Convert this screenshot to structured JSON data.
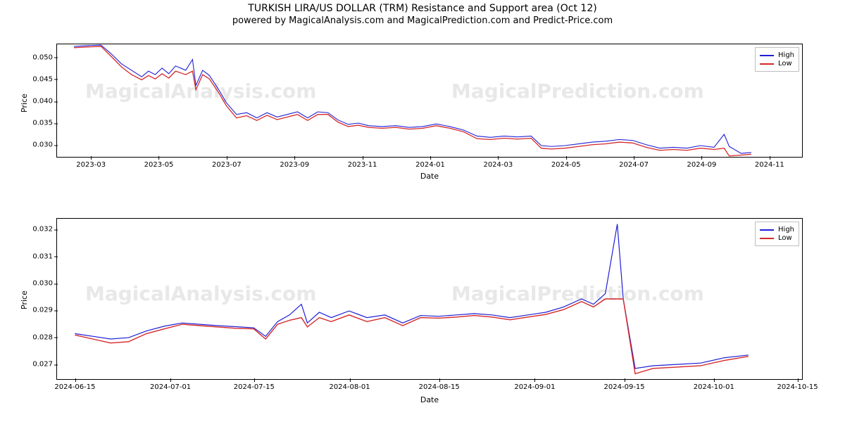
{
  "titles": {
    "main": "TURKISH LIRA/US DOLLAR (TRM) Resistance and Support area (Oct 12)",
    "sub": "powered by MagicalAnalysis.com and MagicalPrediction.com and Predict-Price.com"
  },
  "watermarks": [
    "MagicalAnalysis.com",
    "MagicalPrediction.com"
  ],
  "legend": {
    "high": {
      "label": "High",
      "color": "#1f1fd6"
    },
    "low": {
      "label": "Low",
      "color": "#d62728"
    }
  },
  "axis_labels": {
    "x": "Date",
    "y": "Price"
  },
  "panel1": {
    "ylim": [
      0.027,
      0.053
    ],
    "yticks": [
      0.03,
      0.035,
      0.04,
      0.045,
      0.05
    ],
    "ytick_labels": [
      "0.030",
      "0.035",
      "0.040",
      "0.045",
      "0.050"
    ],
    "xlim": [
      0,
      22
    ],
    "xticks": [
      1,
      3,
      5,
      7,
      9,
      11,
      13,
      15,
      17,
      19,
      21
    ],
    "xtick_labels": [
      "2023-03",
      "2023-05",
      "2023-07",
      "2023-09",
      "2023-11",
      "2024-01",
      "2024-03",
      "2024-05",
      "2024-07",
      "2024-09",
      "2024-11"
    ],
    "series": {
      "high": {
        "color": "#1f1fd6",
        "width": 1.1,
        "points": [
          [
            0.5,
            0.0525
          ],
          [
            0.9,
            0.0527
          ],
          [
            1.3,
            0.0528
          ],
          [
            1.6,
            0.0508
          ],
          [
            1.9,
            0.0485
          ],
          [
            2.2,
            0.047
          ],
          [
            2.5,
            0.0455
          ],
          [
            2.7,
            0.0468
          ],
          [
            2.9,
            0.046
          ],
          [
            3.1,
            0.0475
          ],
          [
            3.3,
            0.0462
          ],
          [
            3.5,
            0.048
          ],
          [
            3.8,
            0.047
          ],
          [
            4.0,
            0.0495
          ],
          [
            4.1,
            0.0435
          ],
          [
            4.3,
            0.047
          ],
          [
            4.5,
            0.0458
          ],
          [
            4.8,
            0.0422
          ],
          [
            5.0,
            0.0395
          ],
          [
            5.3,
            0.0368
          ],
          [
            5.6,
            0.0372
          ],
          [
            5.9,
            0.036
          ],
          [
            6.2,
            0.0372
          ],
          [
            6.5,
            0.0362
          ],
          [
            6.8,
            0.0368
          ],
          [
            7.1,
            0.0374
          ],
          [
            7.4,
            0.036
          ],
          [
            7.7,
            0.0374
          ],
          [
            8.0,
            0.0372
          ],
          [
            8.3,
            0.0355
          ],
          [
            8.6,
            0.0345
          ],
          [
            8.9,
            0.0348
          ],
          [
            9.2,
            0.0342
          ],
          [
            9.6,
            0.034
          ],
          [
            10.0,
            0.0342
          ],
          [
            10.4,
            0.0338
          ],
          [
            10.8,
            0.034
          ],
          [
            11.2,
            0.0346
          ],
          [
            11.6,
            0.034
          ],
          [
            12.0,
            0.0332
          ],
          [
            12.4,
            0.0318
          ],
          [
            12.8,
            0.0315
          ],
          [
            13.2,
            0.0318
          ],
          [
            13.6,
            0.0316
          ],
          [
            14.0,
            0.0318
          ],
          [
            14.3,
            0.0296
          ],
          [
            14.6,
            0.0294
          ],
          [
            15.0,
            0.0296
          ],
          [
            15.4,
            0.03
          ],
          [
            15.8,
            0.0304
          ],
          [
            16.2,
            0.0306
          ],
          [
            16.6,
            0.031
          ],
          [
            17.0,
            0.0308
          ],
          [
            17.4,
            0.0298
          ],
          [
            17.8,
            0.029
          ],
          [
            18.2,
            0.0292
          ],
          [
            18.6,
            0.029
          ],
          [
            19.0,
            0.0296
          ],
          [
            19.4,
            0.0292
          ],
          [
            19.7,
            0.0322
          ],
          [
            19.85,
            0.0294
          ],
          [
            20.2,
            0.0278
          ],
          [
            20.5,
            0.028
          ]
        ]
      },
      "low": {
        "color": "#d62728",
        "width": 1.3,
        "points": [
          [
            0.5,
            0.0522
          ],
          [
            0.9,
            0.0524
          ],
          [
            1.3,
            0.0525
          ],
          [
            1.6,
            0.0502
          ],
          [
            1.9,
            0.0478
          ],
          [
            2.2,
            0.046
          ],
          [
            2.5,
            0.0448
          ],
          [
            2.7,
            0.0458
          ],
          [
            2.9,
            0.045
          ],
          [
            3.1,
            0.0462
          ],
          [
            3.3,
            0.0452
          ],
          [
            3.5,
            0.0468
          ],
          [
            3.8,
            0.046
          ],
          [
            4.0,
            0.0468
          ],
          [
            4.1,
            0.0425
          ],
          [
            4.3,
            0.046
          ],
          [
            4.5,
            0.045
          ],
          [
            4.8,
            0.0415
          ],
          [
            5.0,
            0.0388
          ],
          [
            5.3,
            0.036
          ],
          [
            5.6,
            0.0365
          ],
          [
            5.9,
            0.0354
          ],
          [
            6.2,
            0.0366
          ],
          [
            6.5,
            0.0356
          ],
          [
            6.8,
            0.0362
          ],
          [
            7.1,
            0.0368
          ],
          [
            7.4,
            0.0354
          ],
          [
            7.7,
            0.0368
          ],
          [
            8.0,
            0.0368
          ],
          [
            8.3,
            0.035
          ],
          [
            8.6,
            0.034
          ],
          [
            8.9,
            0.0343
          ],
          [
            9.2,
            0.0338
          ],
          [
            9.6,
            0.0336
          ],
          [
            10.0,
            0.0338
          ],
          [
            10.4,
            0.0334
          ],
          [
            10.8,
            0.0336
          ],
          [
            11.2,
            0.0342
          ],
          [
            11.6,
            0.0336
          ],
          [
            12.0,
            0.0328
          ],
          [
            12.4,
            0.0312
          ],
          [
            12.8,
            0.031
          ],
          [
            13.2,
            0.0313
          ],
          [
            13.6,
            0.0311
          ],
          [
            14.0,
            0.0313
          ],
          [
            14.3,
            0.029
          ],
          [
            14.6,
            0.0288
          ],
          [
            15.0,
            0.029
          ],
          [
            15.4,
            0.0294
          ],
          [
            15.8,
            0.0298
          ],
          [
            16.2,
            0.03
          ],
          [
            16.6,
            0.0304
          ],
          [
            17.0,
            0.0302
          ],
          [
            17.4,
            0.0292
          ],
          [
            17.8,
            0.0285
          ],
          [
            18.2,
            0.0287
          ],
          [
            18.6,
            0.0285
          ],
          [
            19.0,
            0.029
          ],
          [
            19.4,
            0.0287
          ],
          [
            19.7,
            0.029
          ],
          [
            19.85,
            0.0272
          ],
          [
            20.2,
            0.0274
          ],
          [
            20.5,
            0.0276
          ]
        ]
      }
    }
  },
  "panel2": {
    "ylim": [
      0.0264,
      0.0324
    ],
    "yticks": [
      0.027,
      0.028,
      0.029,
      0.03,
      0.031,
      0.032
    ],
    "ytick_labels": [
      "0.027",
      "0.028",
      "0.029",
      "0.030",
      "0.031",
      "0.032"
    ],
    "xlim": [
      0,
      125
    ],
    "xticks": [
      3,
      19,
      33,
      49,
      64,
      80,
      95,
      110,
      124
    ],
    "xtick_labels": [
      "2024-06-15",
      "2024-07-01",
      "2024-07-15",
      "2024-08-01",
      "2024-08-15",
      "2024-09-01",
      "2024-09-15",
      "2024-10-01",
      "2024-10-15"
    ],
    "series": {
      "high": {
        "color": "#1f1fd6",
        "width": 1.2,
        "points": [
          [
            3,
            0.0281
          ],
          [
            6,
            0.028
          ],
          [
            9,
            0.0279
          ],
          [
            12,
            0.02795
          ],
          [
            15,
            0.0282
          ],
          [
            18,
            0.02838
          ],
          [
            21,
            0.0285
          ],
          [
            24,
            0.02845
          ],
          [
            27,
            0.0284
          ],
          [
            30,
            0.02836
          ],
          [
            33,
            0.02832
          ],
          [
            35,
            0.028
          ],
          [
            37,
            0.02855
          ],
          [
            39,
            0.0288
          ],
          [
            41,
            0.0292
          ],
          [
            42,
            0.0285
          ],
          [
            44,
            0.0289
          ],
          [
            46,
            0.0287
          ],
          [
            49,
            0.02895
          ],
          [
            52,
            0.0287
          ],
          [
            55,
            0.0288
          ],
          [
            58,
            0.0285
          ],
          [
            61,
            0.02878
          ],
          [
            64,
            0.02875
          ],
          [
            67,
            0.0288
          ],
          [
            70,
            0.02885
          ],
          [
            73,
            0.0288
          ],
          [
            76,
            0.0287
          ],
          [
            79,
            0.0288
          ],
          [
            82,
            0.0289
          ],
          [
            85,
            0.0291
          ],
          [
            88,
            0.0294
          ],
          [
            90,
            0.0292
          ],
          [
            92,
            0.0296
          ],
          [
            94,
            0.0322
          ],
          [
            95,
            0.0294
          ],
          [
            97,
            0.0268
          ],
          [
            100,
            0.0269
          ],
          [
            104,
            0.02695
          ],
          [
            108,
            0.027
          ],
          [
            112,
            0.0272
          ],
          [
            116,
            0.0273
          ]
        ]
      },
      "low": {
        "color": "#d62728",
        "width": 1.4,
        "points": [
          [
            3,
            0.02805
          ],
          [
            6,
            0.0279
          ],
          [
            9,
            0.02775
          ],
          [
            12,
            0.0278
          ],
          [
            15,
            0.0281
          ],
          [
            18,
            0.02828
          ],
          [
            21,
            0.02845
          ],
          [
            24,
            0.0284
          ],
          [
            27,
            0.02835
          ],
          [
            30,
            0.0283
          ],
          [
            33,
            0.02828
          ],
          [
            35,
            0.0279
          ],
          [
            37,
            0.02845
          ],
          [
            39,
            0.0286
          ],
          [
            41,
            0.0287
          ],
          [
            42,
            0.02835
          ],
          [
            44,
            0.0287
          ],
          [
            46,
            0.02855
          ],
          [
            49,
            0.0288
          ],
          [
            52,
            0.02855
          ],
          [
            55,
            0.0287
          ],
          [
            58,
            0.0284
          ],
          [
            61,
            0.0287
          ],
          [
            64,
            0.02868
          ],
          [
            67,
            0.02872
          ],
          [
            70,
            0.02878
          ],
          [
            73,
            0.02872
          ],
          [
            76,
            0.02862
          ],
          [
            79,
            0.02872
          ],
          [
            82,
            0.02882
          ],
          [
            85,
            0.029
          ],
          [
            88,
            0.0293
          ],
          [
            90,
            0.0291
          ],
          [
            92,
            0.0294
          ],
          [
            94,
            0.0294
          ],
          [
            95,
            0.0294
          ],
          [
            97,
            0.0266
          ],
          [
            100,
            0.0268
          ],
          [
            104,
            0.02685
          ],
          [
            108,
            0.0269
          ],
          [
            112,
            0.0271
          ],
          [
            116,
            0.02725
          ]
        ]
      }
    }
  }
}
